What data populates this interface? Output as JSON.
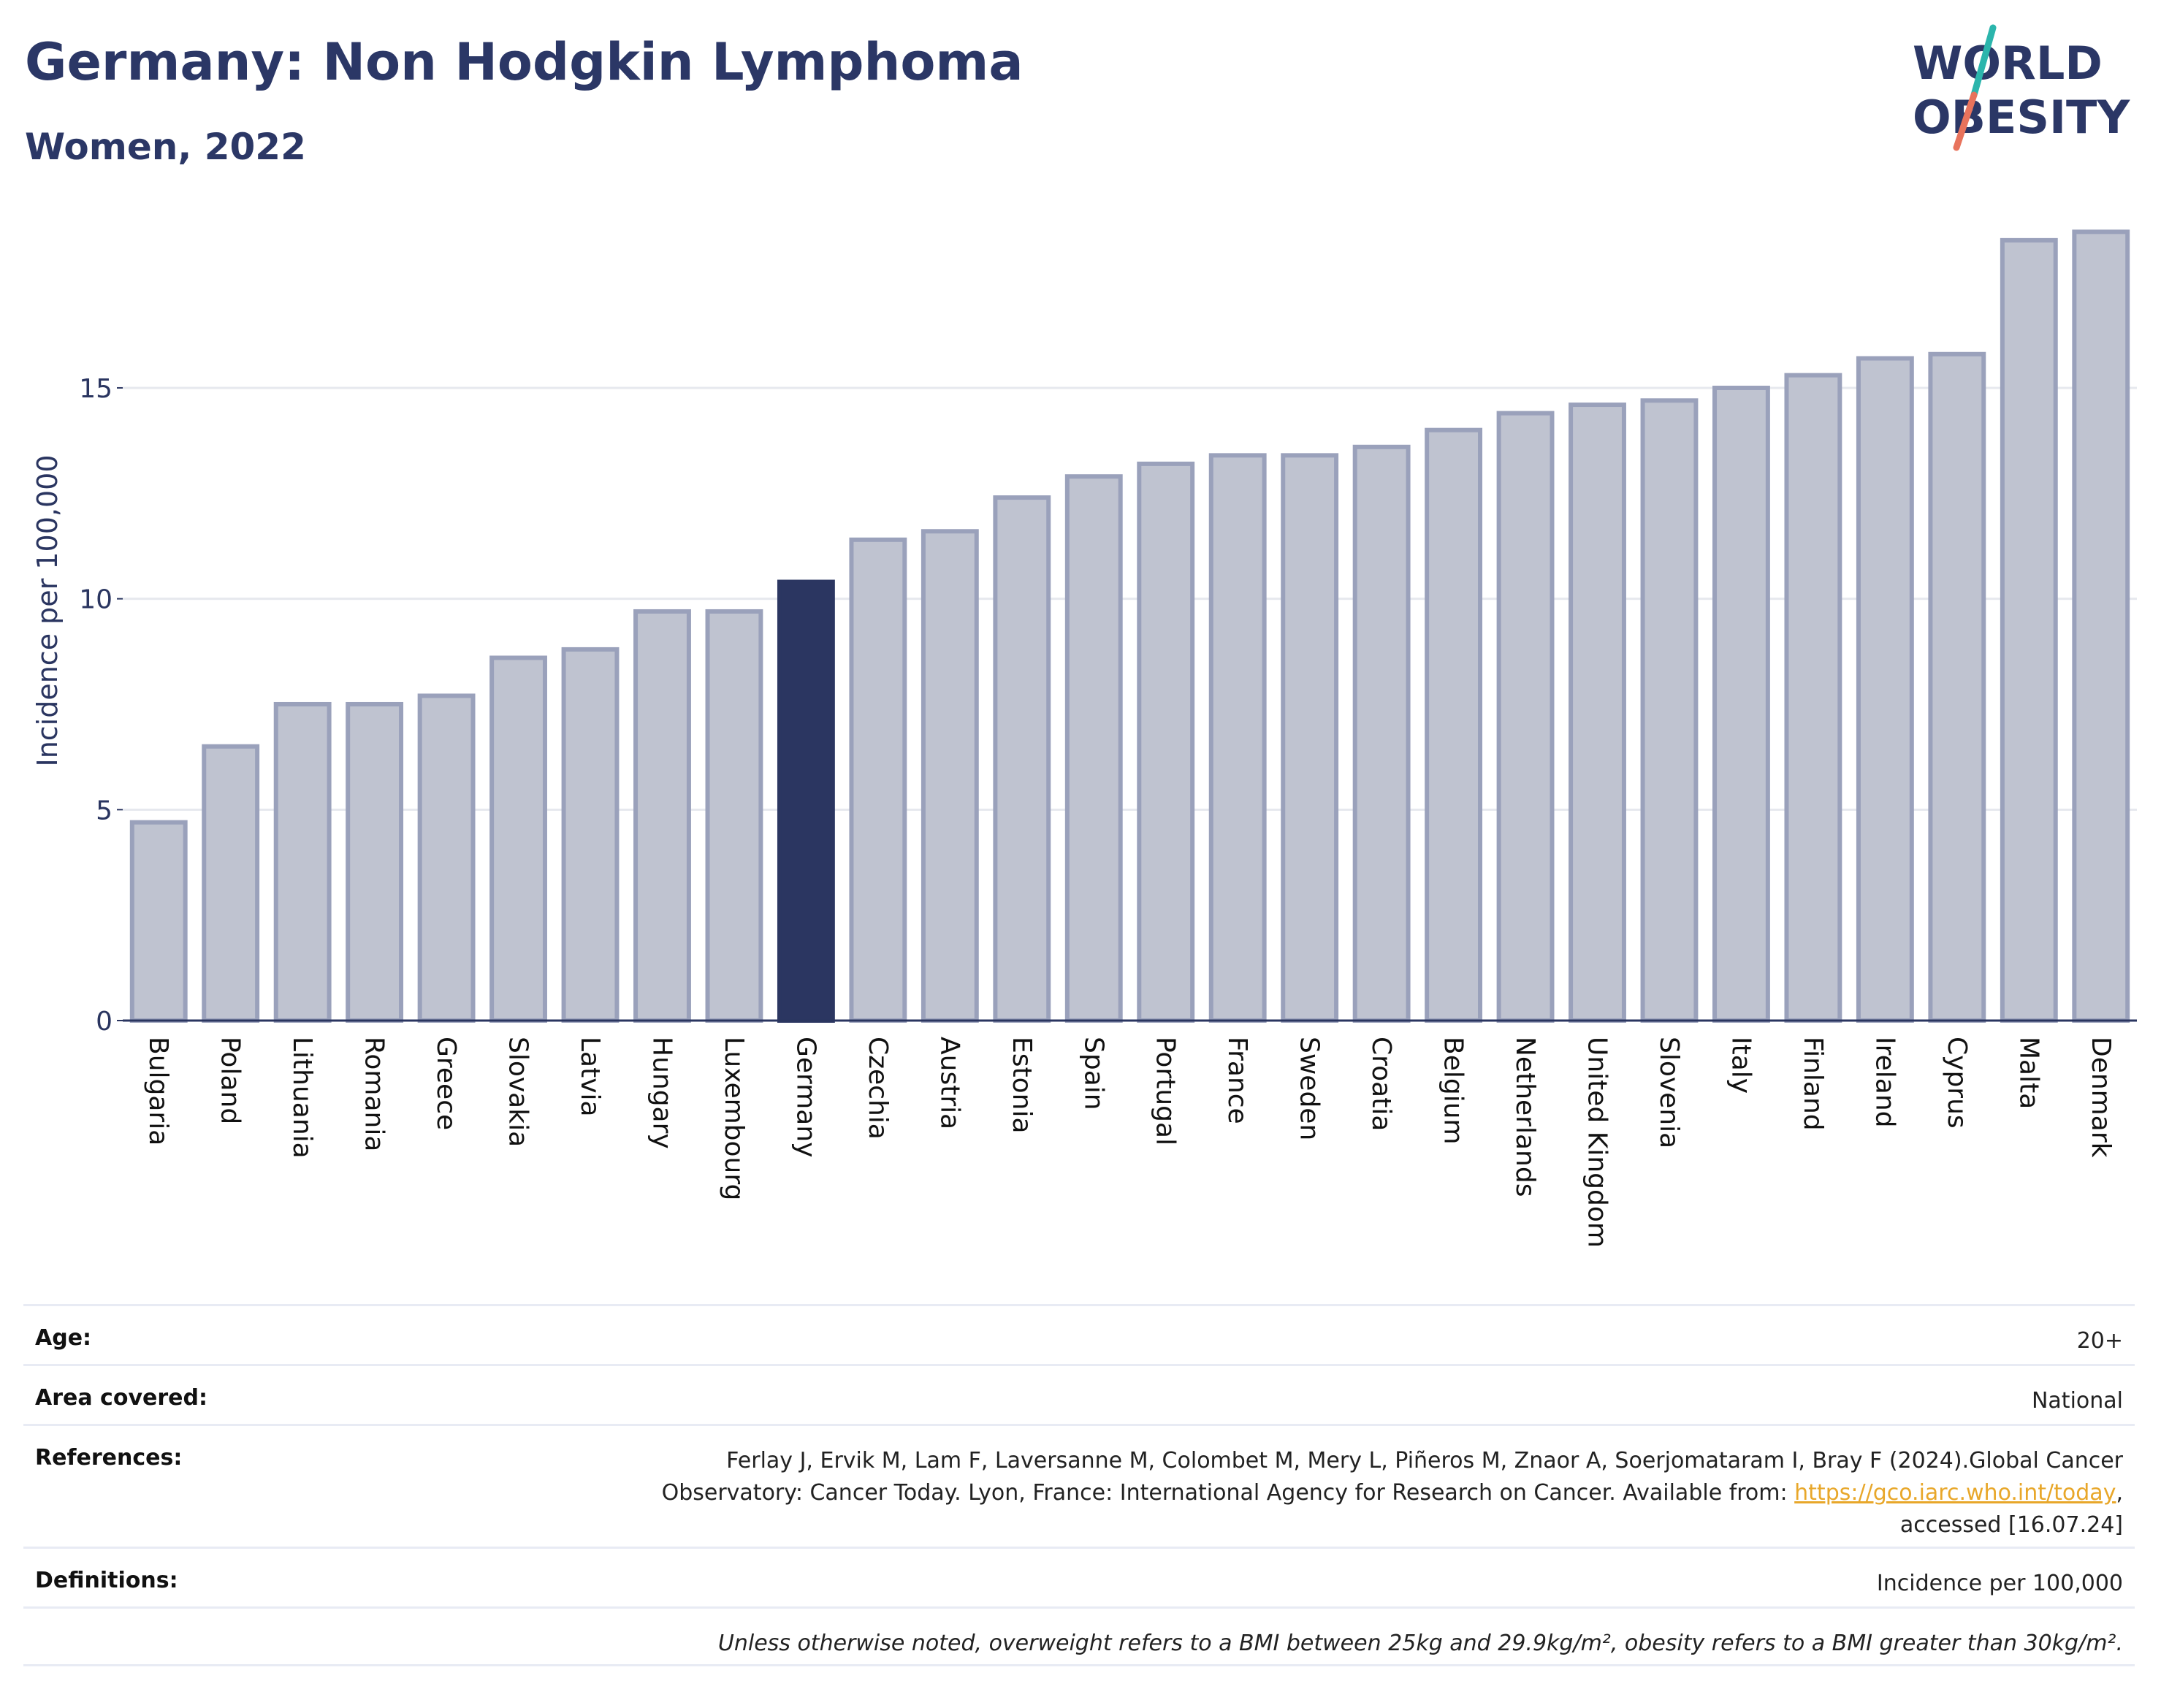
{
  "header": {
    "title": "Germany: Non Hodgkin Lymphoma",
    "subtitle": "Women, 2022"
  },
  "logo": {
    "line1": "WORLD",
    "line2": "OBESITY",
    "colors": {
      "text": "#2b3766",
      "slash_top": "#2bb5ac",
      "slash_bottom": "#e8735c"
    }
  },
  "chart_data": {
    "type": "bar",
    "ylabel": "Incidence per 100,000",
    "ylim": [
      0,
      19
    ],
    "yticks": [
      0,
      5,
      10,
      15
    ],
    "grid": true,
    "highlight": "Germany",
    "colors": {
      "bar": "#bfc3d0",
      "bar_edge": "#9aa1bb",
      "highlight": "#2b3661",
      "grid": "#e6e8ee",
      "axis": "#2a3560"
    },
    "categories": [
      "Bulgaria",
      "Poland",
      "Lithuania",
      "Romania",
      "Greece",
      "Slovakia",
      "Latvia",
      "Hungary",
      "Luxembourg",
      "Germany",
      "Czechia",
      "Austria",
      "Estonia",
      "Spain",
      "Portugal",
      "France",
      "Sweden",
      "Croatia",
      "Belgium",
      "Netherlands",
      "United Kingdom",
      "Slovenia",
      "Italy",
      "Finland",
      "Ireland",
      "Cyprus",
      "Malta",
      "Denmark"
    ],
    "values": [
      4.7,
      6.5,
      7.5,
      7.5,
      7.7,
      8.6,
      8.8,
      9.7,
      9.7,
      10.4,
      11.4,
      11.6,
      12.4,
      12.9,
      13.2,
      13.4,
      13.4,
      13.6,
      14.0,
      14.4,
      14.6,
      14.7,
      15.0,
      15.3,
      15.7,
      15.8,
      18.5,
      18.7
    ]
  },
  "meta": {
    "age_label": "Age:",
    "age_value": "20+",
    "area_label": "Area covered:",
    "area_value": "National",
    "references_label": "References:",
    "references_line1": "Ferlay J, Ervik M, Lam F, Laversanne M, Colombet M, Mery L, Piñeros M, Znaor A, Soerjomataram I, Bray F (2024).Global Cancer",
    "references_line2_prefix": "Observatory: Cancer Today. Lyon, France: International Agency for Research on Cancer. Available from: ",
    "references_link": "https://gco.iarc.who.int/today",
    "references_line2_suffix": ",",
    "references_line3": "accessed [16.07.24]",
    "definitions_label": "Definitions:",
    "definitions_value": "Incidence per 100,000",
    "note": "Unless otherwise noted, overweight refers to a BMI between 25kg and 29.9kg/m², obesity refers to a BMI greater than 30kg/m²."
  }
}
